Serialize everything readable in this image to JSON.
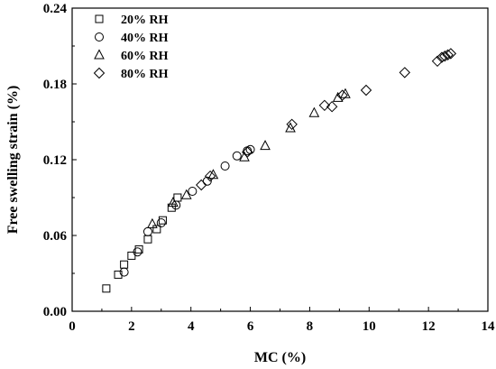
{
  "chart_data": {
    "type": "scatter",
    "xlabel": "MC (%)",
    "ylabel": "Free swelling strain (%)",
    "xlim": [
      0,
      14
    ],
    "ylim": [
      0,
      0.24
    ],
    "xticks": [
      "0",
      "2",
      "4",
      "6",
      "8",
      "10",
      "12",
      "14"
    ],
    "yticks": [
      "0.00",
      "0.06",
      "0.12",
      "0.18",
      "0.24"
    ],
    "grid": false,
    "legend_position": "top-left",
    "series": [
      {
        "name": "20% RH",
        "marker": "square",
        "points": [
          [
            1.15,
            0.018
          ],
          [
            1.55,
            0.029
          ],
          [
            1.75,
            0.037
          ],
          [
            2.0,
            0.044
          ],
          [
            2.25,
            0.049
          ],
          [
            2.55,
            0.057
          ],
          [
            2.85,
            0.065
          ],
          [
            3.05,
            0.072
          ],
          [
            3.35,
            0.082
          ],
          [
            3.55,
            0.09
          ]
        ]
      },
      {
        "name": "40% RH",
        "marker": "circle",
        "points": [
          [
            1.75,
            0.031
          ],
          [
            2.2,
            0.047
          ],
          [
            2.55,
            0.063
          ],
          [
            3.0,
            0.07
          ],
          [
            3.5,
            0.084
          ],
          [
            4.05,
            0.095
          ],
          [
            4.55,
            0.103
          ],
          [
            5.15,
            0.115
          ],
          [
            5.55,
            0.123
          ],
          [
            5.9,
            0.127
          ],
          [
            6.0,
            0.128
          ]
        ]
      },
      {
        "name": "60% RH",
        "marker": "triangle",
        "points": [
          [
            2.7,
            0.069
          ],
          [
            3.4,
            0.086
          ],
          [
            3.85,
            0.092
          ],
          [
            4.75,
            0.108
          ],
          [
            5.8,
            0.122
          ],
          [
            6.5,
            0.131
          ],
          [
            7.35,
            0.145
          ],
          [
            8.15,
            0.157
          ],
          [
            8.95,
            0.169
          ],
          [
            9.2,
            0.172
          ]
        ]
      },
      {
        "name": "80% RH",
        "marker": "diamond",
        "points": [
          [
            4.35,
            0.1
          ],
          [
            4.65,
            0.107
          ],
          [
            5.9,
            0.126
          ],
          [
            7.4,
            0.148
          ],
          [
            8.5,
            0.163
          ],
          [
            8.75,
            0.162
          ],
          [
            9.1,
            0.171
          ],
          [
            9.9,
            0.175
          ],
          [
            11.2,
            0.189
          ],
          [
            12.3,
            0.198
          ],
          [
            12.45,
            0.201
          ],
          [
            12.55,
            0.202
          ],
          [
            12.65,
            0.203
          ],
          [
            12.75,
            0.204
          ]
        ]
      }
    ]
  }
}
